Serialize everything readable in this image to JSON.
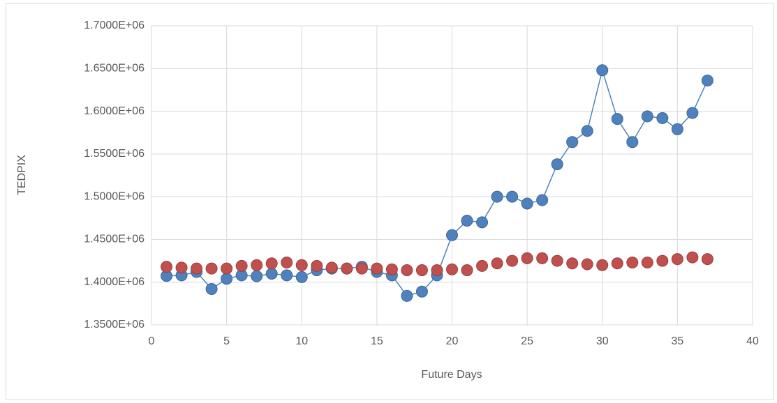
{
  "chart_data": {
    "type": "scatter",
    "x_label": "Future Days",
    "y_label": "TEDPIX",
    "x": [
      1,
      2,
      3,
      4,
      5,
      6,
      7,
      8,
      9,
      10,
      11,
      12,
      13,
      14,
      15,
      16,
      17,
      18,
      19,
      20,
      21,
      22,
      23,
      24,
      25,
      26,
      27,
      28,
      29,
      30,
      31,
      32,
      33,
      34,
      35,
      36,
      37
    ],
    "series": [
      {
        "color": "#4f81bd",
        "line": true,
        "values": [
          1407300,
          1408000,
          1412000,
          1392000,
          1404000,
          1408000,
          1407000,
          1410000,
          1408000,
          1406000,
          1414000,
          1416000,
          1416000,
          1418000,
          1412000,
          1408000,
          1384000,
          1389000,
          1408000,
          1455000,
          1472000,
          1470000,
          1500000,
          1500000,
          1492000,
          1496000,
          1538000,
          1564000,
          1577000,
          1648000,
          1591000,
          1564000,
          1594000,
          1592000,
          1579000,
          1598000,
          1636000
        ]
      },
      {
        "color": "#c0504d",
        "line": false,
        "values": [
          1418000,
          1417000,
          1416000,
          1416000,
          1416000,
          1419000,
          1420000,
          1422000,
          1423000,
          1420000,
          1419000,
          1417000,
          1416000,
          1416000,
          1416000,
          1415000,
          1414000,
          1414000,
          1414000,
          1415000,
          1414000,
          1419000,
          1422000,
          1425000,
          1428000,
          1428000,
          1425000,
          1422000,
          1421000,
          1420000,
          1422000,
          1423000,
          1423000,
          1425000,
          1427000,
          1429000,
          1427000
        ]
      }
    ],
    "xlim": [
      0,
      40
    ],
    "xticks": [
      0,
      5,
      10,
      15,
      20,
      25,
      30,
      35,
      40
    ],
    "ylim": [
      1350000,
      1700000
    ],
    "yticks": [
      {
        "value": 1350000,
        "label": "1.3500E+06"
      },
      {
        "value": 1400000,
        "label": "1.4000E+06"
      },
      {
        "value": 1450000,
        "label": "1.4500E+06"
      },
      {
        "value": 1500000,
        "label": "1.5000E+06"
      },
      {
        "value": 1550000,
        "label": "1.5500E+06"
      },
      {
        "value": 1600000,
        "label": "1.6000E+06"
      },
      {
        "value": 1650000,
        "label": "1.6500E+06"
      },
      {
        "value": 1700000,
        "label": "1.7000E+06"
      }
    ],
    "grid": true
  }
}
